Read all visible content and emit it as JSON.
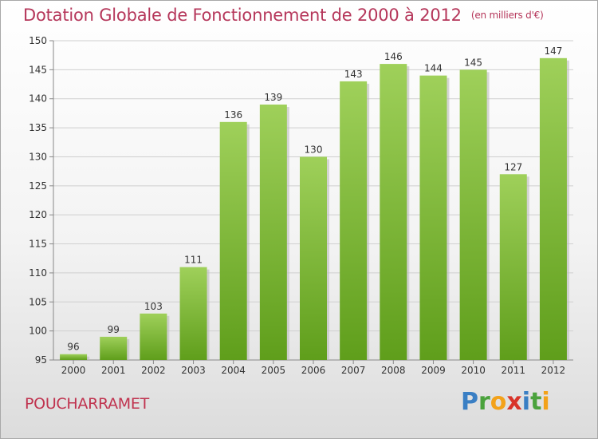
{
  "title": "Dotation Globale de Fonctionnement de 2000 à 2012",
  "subtitle": "(en milliers d'€)",
  "commune": "POUCHARRAMET",
  "logo": {
    "text": "Proxiti",
    "letters": [
      {
        "ch": "P",
        "color": "#3a7fc4"
      },
      {
        "ch": "r",
        "color": "#4aa23c"
      },
      {
        "ch": "o",
        "color": "#f3a21a"
      },
      {
        "ch": "x",
        "color": "#d8342a"
      },
      {
        "ch": "i",
        "color": "#3a7fc4"
      },
      {
        "ch": "t",
        "color": "#4aa23c"
      },
      {
        "ch": "i",
        "color": "#f3a21a"
      }
    ]
  },
  "colors": {
    "bar_top": "#9fd05a",
    "bar_bottom": "#5f9e1b",
    "grid": "#cfcfcf",
    "axis_text": "#333333",
    "title": "#b5365a"
  },
  "chart_data": {
    "type": "bar",
    "title": "Dotation Globale de Fonctionnement de 2000 à 2012",
    "subtitle": "(en milliers d'€)",
    "categories": [
      "2000",
      "2001",
      "2002",
      "2003",
      "2004",
      "2005",
      "2006",
      "2007",
      "2008",
      "2009",
      "2010",
      "2011",
      "2012"
    ],
    "values": [
      96,
      99,
      103,
      111,
      136,
      139,
      130,
      143,
      146,
      144,
      145,
      127,
      147
    ],
    "ylim": [
      95,
      150
    ],
    "yticks": [
      95,
      100,
      105,
      110,
      115,
      120,
      125,
      130,
      135,
      140,
      145,
      150
    ],
    "grid": true,
    "xlabel": "",
    "ylabel": ""
  }
}
